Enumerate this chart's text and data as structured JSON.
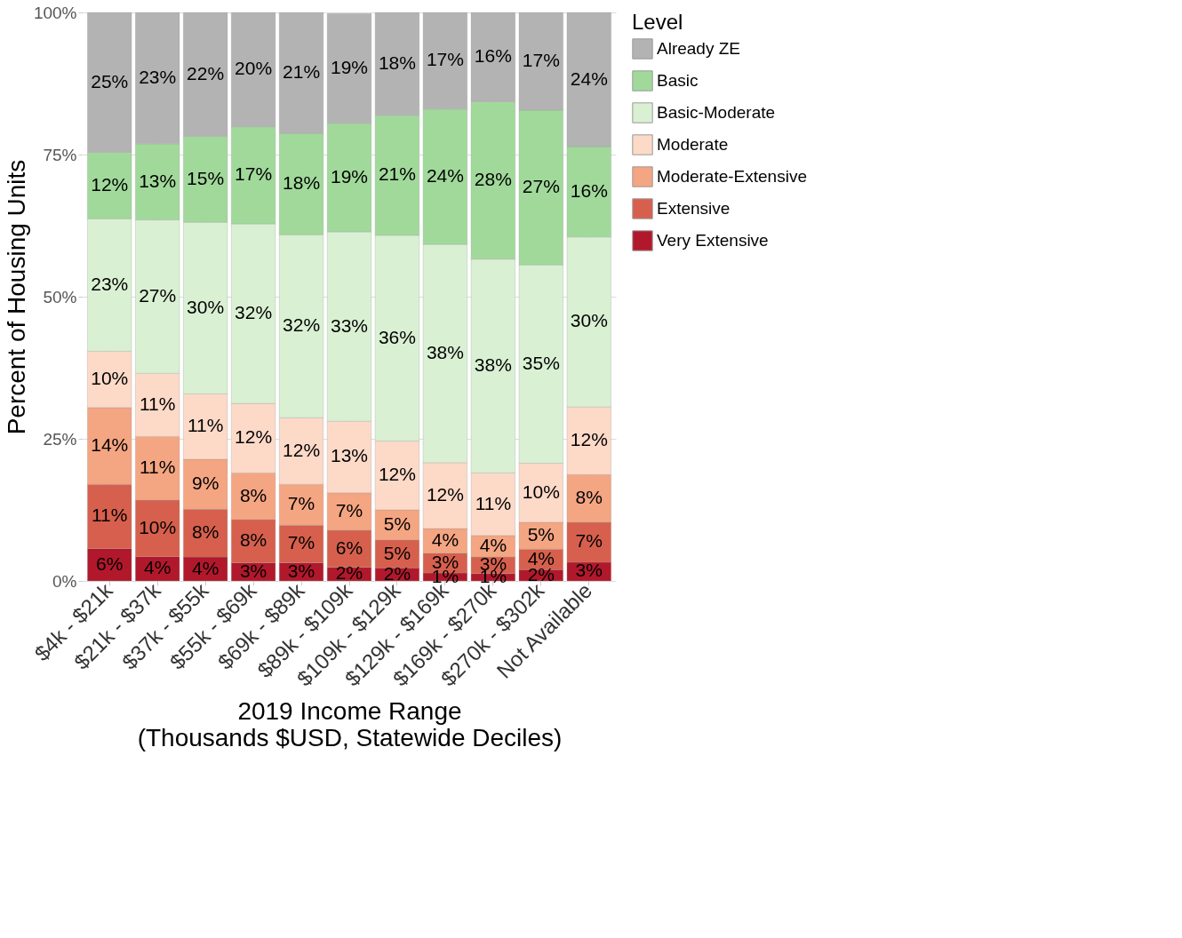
{
  "chart_data": {
    "type": "bar",
    "stacked": true,
    "xlabel": "2019 Income Range\n(Thousands $USD, Statewide Deciles)",
    "ylabel": "Percent of Housing Units",
    "legend_title": "Level",
    "legend": "right",
    "grid": true,
    "categories": [
      "$4k - $21k",
      "$21k - $37k",
      "$37k - $55k",
      "$55k - $69k",
      "$69k - $89k",
      "$89k - $109k",
      "$109k - $129k",
      "$129k - $169k",
      "$169k - $270k",
      "$270k - $302k",
      "Not Available"
    ],
    "ylim": [
      0,
      100
    ],
    "yticks": [
      {
        "value": 0,
        "label": "0%"
      },
      {
        "value": 25,
        "label": "25%"
      },
      {
        "value": 50,
        "label": "50%"
      },
      {
        "value": 75,
        "label": "75%"
      },
      {
        "value": 100,
        "label": "100%"
      }
    ],
    "series": [
      {
        "name": "Very Extensive",
        "color": "#b2182b",
        "values": [
          5.7,
          4.3,
          4.2,
          3.2,
          3.2,
          2.4,
          2.3,
          1.4,
          1.3,
          2.0,
          3.3
        ],
        "value_labels": [
          "6%",
          "4%",
          "4%",
          "3%",
          "3%",
          "2%",
          "2%",
          "1%",
          "1%",
          "2%",
          "3%"
        ]
      },
      {
        "name": "Extensive",
        "color": "#d6604d",
        "values": [
          11.3,
          9.9,
          8.4,
          7.6,
          6.6,
          6.5,
          4.9,
          3.5,
          2.9,
          3.6,
          7.0
        ],
        "value_labels": [
          "11%",
          "10%",
          "8%",
          "8%",
          "7%",
          "6%",
          "5%",
          "3%",
          "3%",
          "4%",
          "7%"
        ]
      },
      {
        "name": "Moderate-Extensive",
        "color": "#f4a582",
        "values": [
          13.5,
          11.2,
          8.8,
          8.2,
          7.2,
          6.6,
          5.3,
          4.3,
          3.8,
          4.7,
          8.4
        ],
        "value_labels": [
          "14%",
          "11%",
          "9%",
          "8%",
          "7%",
          "7%",
          "5%",
          "4%",
          "4%",
          "5%",
          "8%"
        ]
      },
      {
        "name": "Moderate",
        "color": "#fdd9c8",
        "values": [
          9.9,
          11.1,
          11.5,
          12.2,
          11.7,
          12.6,
          12.1,
          11.6,
          11.0,
          10.4,
          11.9
        ],
        "value_labels": [
          "10%",
          "11%",
          "11%",
          "12%",
          "12%",
          "13%",
          "12%",
          "12%",
          "11%",
          "10%",
          "12%"
        ]
      },
      {
        "name": "Basic-Moderate",
        "color": "#d9f0d3",
        "values": [
          23.3,
          27.0,
          30.2,
          31.6,
          32.2,
          33.3,
          36.2,
          38.4,
          37.6,
          34.9,
          29.9
        ],
        "value_labels": [
          "23%",
          "27%",
          "30%",
          "32%",
          "32%",
          "33%",
          "36%",
          "38%",
          "38%",
          "35%",
          "30%"
        ]
      },
      {
        "name": "Basic",
        "color": "#a1d99b",
        "values": [
          11.7,
          13.4,
          15.1,
          17.1,
          17.8,
          19.1,
          21.1,
          23.8,
          27.7,
          27.2,
          15.9
        ],
        "value_labels": [
          "12%",
          "13%",
          "15%",
          "17%",
          "18%",
          "19%",
          "21%",
          "24%",
          "28%",
          "27%",
          "16%"
        ]
      },
      {
        "name": "Already ZE",
        "color": "#b3b3b3",
        "values": [
          24.6,
          23.1,
          21.8,
          20.1,
          21.3,
          19.3,
          18.1,
          17.0,
          15.7,
          17.2,
          23.6
        ],
        "value_labels": [
          "25%",
          "23%",
          "22%",
          "20%",
          "21%",
          "19%",
          "18%",
          "17%",
          "16%",
          "17%",
          "24%"
        ]
      }
    ]
  }
}
